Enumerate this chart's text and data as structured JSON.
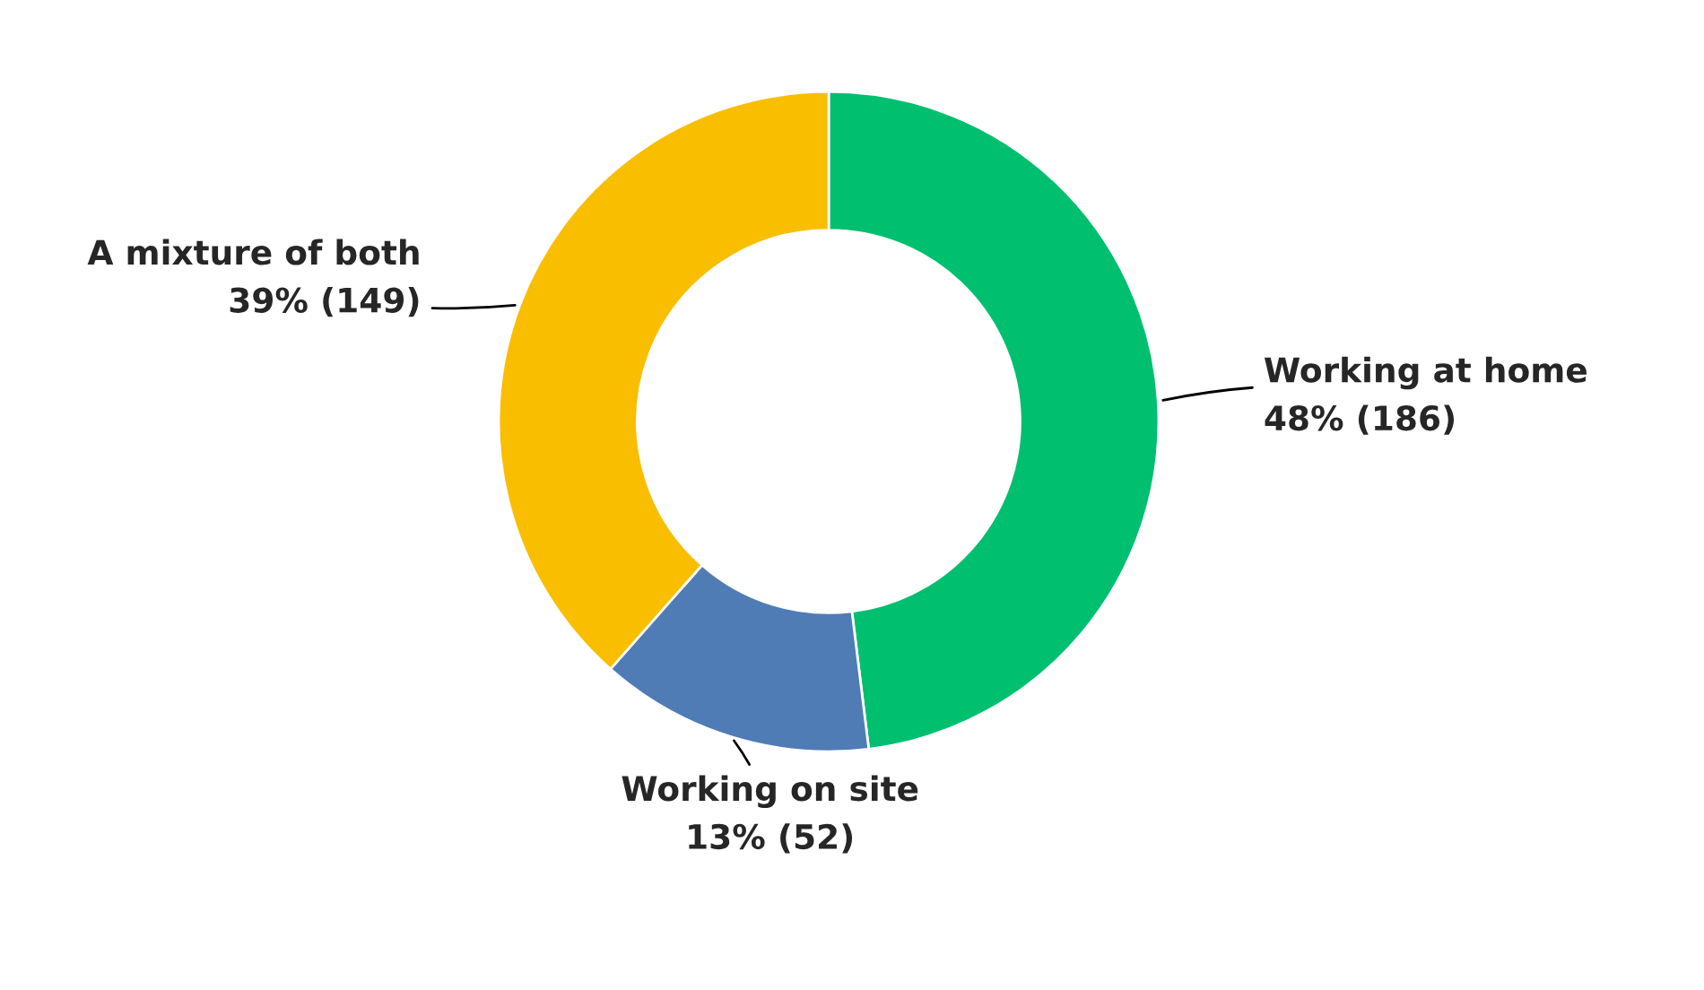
{
  "chart_data": {
    "type": "donut",
    "categories": [
      "Working at home",
      "Working on site",
      "A mixture of both"
    ],
    "values": [
      186,
      52,
      149
    ],
    "value_labels": [
      "48% (186)",
      "13% (52)",
      "39% (149)"
    ],
    "colors": [
      "#00bf6f",
      "#507cb6",
      "#f9be00"
    ]
  }
}
